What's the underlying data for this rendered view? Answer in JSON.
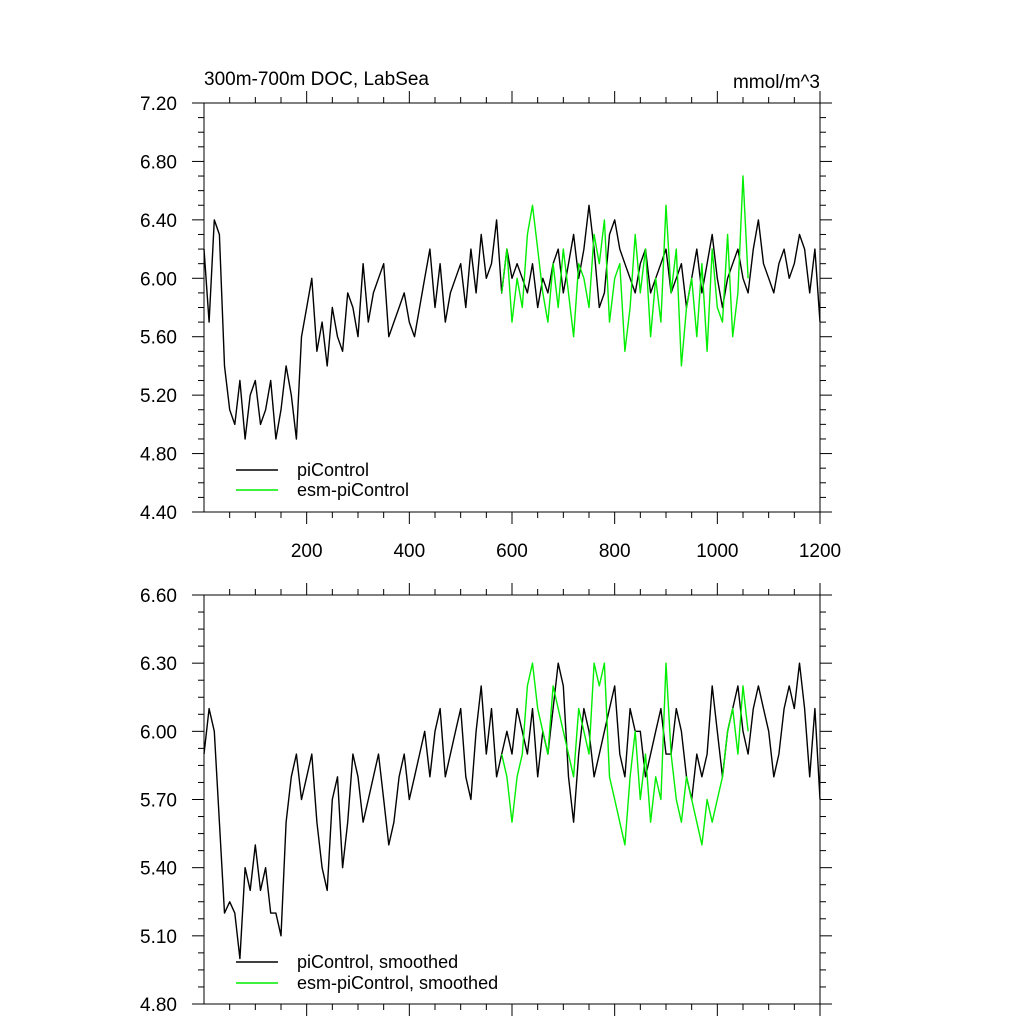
{
  "chart_data": [
    {
      "type": "line",
      "title": "300m-700m DOC, LabSea",
      "units": "mmol/m^3",
      "xlim": [
        0,
        1200
      ],
      "ylim": [
        4.4,
        7.2
      ],
      "xticks": [
        200,
        400,
        600,
        800,
        1000,
        1200
      ],
      "yticks": [
        4.4,
        4.8,
        5.2,
        5.6,
        6.0,
        6.4,
        6.8,
        7.2
      ],
      "xtick_labels": [
        "200",
        "400",
        "600",
        "800",
        "1000",
        "1200"
      ],
      "ytick_labels": [
        "4.40",
        "4.80",
        "5.20",
        "5.60",
        "6.00",
        "6.40",
        "6.80",
        "7.20"
      ],
      "legend": [
        "piControl",
        "esm-piControl"
      ],
      "legend_placement": "bottom-left",
      "series": [
        {
          "name": "piControl",
          "color": "#000000",
          "x_start": 0,
          "x_step": 10,
          "values": [
            6.2,
            5.7,
            6.4,
            6.3,
            5.4,
            5.1,
            5.0,
            5.3,
            4.9,
            5.2,
            5.3,
            5.0,
            5.1,
            5.3,
            4.9,
            5.1,
            5.4,
            5.2,
            4.9,
            5.6,
            5.8,
            6.0,
            5.5,
            5.7,
            5.4,
            5.8,
            5.6,
            5.5,
            5.9,
            5.8,
            5.6,
            6.1,
            5.7,
            5.9,
            6.0,
            6.1,
            5.6,
            5.7,
            5.8,
            5.9,
            5.7,
            5.6,
            5.8,
            6.0,
            6.2,
            5.8,
            6.1,
            5.7,
            5.9,
            6.0,
            6.1,
            5.8,
            6.2,
            5.9,
            6.3,
            6.0,
            6.1,
            6.4,
            5.9,
            6.2,
            6.0,
            6.1,
            6.0,
            5.9,
            6.1,
            5.8,
            6.0,
            5.9,
            6.1,
            6.2,
            5.9,
            6.1,
            6.3,
            6.0,
            6.2,
            6.5,
            6.2,
            5.8,
            5.9,
            6.3,
            6.4,
            6.2,
            6.1,
            6.0,
            5.9,
            6.1,
            6.2,
            5.9,
            6.0,
            6.1,
            6.2,
            5.9,
            6.0,
            6.1,
            5.8,
            6.0,
            6.2,
            5.9,
            6.1,
            6.3,
            6.0,
            5.8,
            6.0,
            6.1,
            6.2,
            6.0,
            5.9,
            6.2,
            6.4,
            6.1,
            6.0,
            5.9,
            6.1,
            6.2,
            6.0,
            6.1,
            6.3,
            6.2,
            5.9,
            6.2,
            5.7
          ]
        },
        {
          "name": "esm-piControl",
          "color": "#00ee00",
          "x_start": 580,
          "x_step": 10,
          "values": [
            5.9,
            6.2,
            5.7,
            6.0,
            5.8,
            6.3,
            6.5,
            6.2,
            5.9,
            5.7,
            6.1,
            5.8,
            6.2,
            5.9,
            5.6,
            6.1,
            6.0,
            5.8,
            6.3,
            6.1,
            6.4,
            5.7,
            6.0,
            6.1,
            5.5,
            5.8,
            6.3,
            5.9,
            6.2,
            5.6,
            6.0,
            5.7,
            6.5,
            5.9,
            6.2,
            5.4,
            5.8,
            6.0,
            5.6,
            6.1,
            5.5,
            6.2,
            5.8,
            5.7,
            6.3,
            5.6,
            5.9,
            6.7,
            6.0
          ]
        }
      ]
    },
    {
      "type": "line",
      "title": "",
      "xlim": [
        0,
        1200
      ],
      "ylim": [
        4.8,
        6.6
      ],
      "xticks": [
        200,
        400,
        600,
        800,
        1000,
        1200
      ],
      "yticks": [
        4.8,
        5.1,
        5.4,
        5.7,
        6.0,
        6.3,
        6.6
      ],
      "ytick_labels": [
        "4.80",
        "5.10",
        "5.40",
        "5.70",
        "6.00",
        "6.30",
        "6.60"
      ],
      "legend": [
        "piControl, smoothed",
        "esm-piControl, smoothed"
      ],
      "legend_placement": "bottom-left",
      "series": [
        {
          "name": "piControl, smoothed",
          "color": "#000000",
          "x_start": 0,
          "x_step": 10,
          "values": [
            5.9,
            6.1,
            6.0,
            5.6,
            5.2,
            5.25,
            5.2,
            5.0,
            5.4,
            5.3,
            5.5,
            5.3,
            5.4,
            5.2,
            5.2,
            5.1,
            5.6,
            5.8,
            5.9,
            5.7,
            5.8,
            5.9,
            5.6,
            5.4,
            5.3,
            5.7,
            5.8,
            5.4,
            5.6,
            5.9,
            5.8,
            5.6,
            5.7,
            5.8,
            5.9,
            5.7,
            5.5,
            5.6,
            5.8,
            5.9,
            5.7,
            5.8,
            5.9,
            6.0,
            5.8,
            6.0,
            6.1,
            5.8,
            5.9,
            6.0,
            6.1,
            5.8,
            5.7,
            6.0,
            6.2,
            5.9,
            6.1,
            5.8,
            5.9,
            6.0,
            5.9,
            6.1,
            6.0,
            5.9,
            6.1,
            5.8,
            6.0,
            5.9,
            6.1,
            6.3,
            6.2,
            5.8,
            5.6,
            5.9,
            6.1,
            6.0,
            5.8,
            5.9,
            6.0,
            6.1,
            6.2,
            5.9,
            5.8,
            6.1,
            6.0,
            6.0,
            5.8,
            5.9,
            6.0,
            6.1,
            5.9,
            5.9,
            6.1,
            6.0,
            5.8,
            5.7,
            5.9,
            5.8,
            5.9,
            6.2,
            6.0,
            5.8,
            6.0,
            6.1,
            6.2,
            6.0,
            5.9,
            6.1,
            6.2,
            6.1,
            6.0,
            5.8,
            5.9,
            6.1,
            6.2,
            6.1,
            6.3,
            6.1,
            5.8,
            6.1,
            5.7
          ]
        },
        {
          "name": "esm-piControl, smoothed",
          "color": "#00ee00",
          "x_start": 580,
          "x_step": 10,
          "values": [
            5.9,
            5.8,
            5.6,
            5.8,
            5.9,
            6.2,
            6.3,
            6.1,
            6.0,
            5.9,
            6.2,
            6.1,
            6.0,
            5.9,
            5.8,
            6.1,
            6.0,
            5.9,
            6.3,
            6.2,
            6.3,
            5.8,
            5.7,
            5.6,
            5.5,
            5.8,
            6.0,
            5.7,
            5.9,
            5.6,
            5.8,
            5.7,
            6.3,
            5.9,
            5.7,
            5.6,
            5.8,
            5.7,
            5.6,
            5.5,
            5.7,
            5.6,
            5.7,
            5.8,
            6.0,
            6.1,
            5.9,
            6.2,
            6.0
          ]
        }
      ]
    }
  ]
}
